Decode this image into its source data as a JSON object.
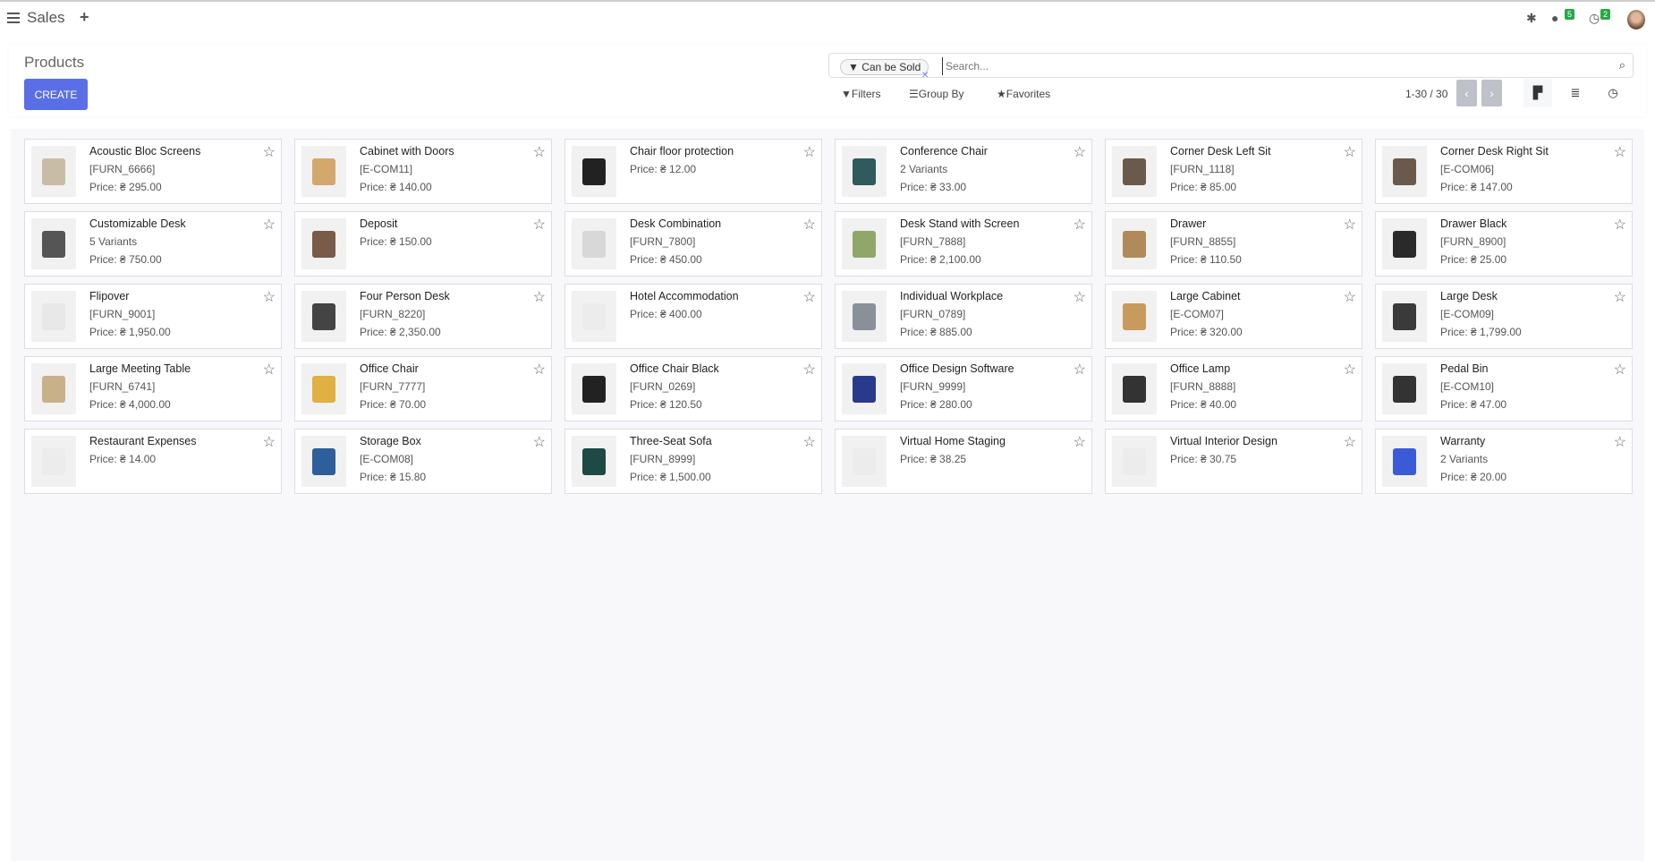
{
  "app": {
    "title": "Sales",
    "new_icon": "plus-icon"
  },
  "systray": {
    "messages_count": "5",
    "activities_count": "2"
  },
  "control_panel": {
    "title": "Products",
    "create_label": "CREATE",
    "search": {
      "facet": "Can be Sold",
      "placeholder": "Search..."
    },
    "filters_label": "Filters",
    "group_by_label": "Group By",
    "favorites_label": "Favorites",
    "pager": "1-30 / 30"
  },
  "products": [
    {
      "name": "Acoustic Bloc Screens",
      "line2": "[FURN_6666]",
      "price": "Price: ₴ 295.00",
      "color": "#c9bca6"
    },
    {
      "name": "Cabinet with Doors",
      "line2": "[E-COM11]",
      "price": "Price: ₴ 140.00",
      "color": "#d4a86c"
    },
    {
      "name": "Chair floor protection",
      "line2": "",
      "price": "Price: ₴ 12.00",
      "color": "#222222"
    },
    {
      "name": "Conference Chair",
      "line2": "2 Variants",
      "price": "Price: ₴ 33.00",
      "color": "#2f5b5c"
    },
    {
      "name": "Corner Desk Left Sit",
      "line2": "[FURN_1118]",
      "price": "Price: ₴ 85.00",
      "color": "#6b5a4c"
    },
    {
      "name": "Corner Desk Right Sit",
      "line2": "[E-COM06]",
      "price": "Price: ₴ 147.00",
      "color": "#6b5a4c"
    },
    {
      "name": "Customizable Desk",
      "line2": "5 Variants",
      "price": "Price: ₴ 750.00",
      "color": "#555555"
    },
    {
      "name": "Deposit",
      "line2": "",
      "price": "Price: ₴ 150.00",
      "color": "#7a5a48"
    },
    {
      "name": "Desk Combination",
      "line2": "[FURN_7800]",
      "price": "Price: ₴ 450.00",
      "color": "#d8d8d8"
    },
    {
      "name": "Desk Stand with Screen",
      "line2": "[FURN_7888]",
      "price": "Price: ₴ 2,100.00",
      "color": "#8fa86a"
    },
    {
      "name": "Drawer",
      "line2": "[FURN_8855]",
      "price": "Price: ₴ 110.50",
      "color": "#b08a5a"
    },
    {
      "name": "Drawer Black",
      "line2": "[FURN_8900]",
      "price": "Price: ₴ 25.00",
      "color": "#2a2a2a"
    },
    {
      "name": "Flipover",
      "line2": "[FURN_9001]",
      "price": "Price: ₴ 1,950.00",
      "color": "#e8e8e8"
    },
    {
      "name": "Four Person Desk",
      "line2": "[FURN_8220]",
      "price": "Price: ₴ 2,350.00",
      "color": "#444444"
    },
    {
      "name": "Hotel Accommodation",
      "line2": "",
      "price": "Price: ₴ 400.00",
      "color": "#ececec"
    },
    {
      "name": "Individual Workplace",
      "line2": "[FURN_0789]",
      "price": "Price: ₴ 885.00",
      "color": "#8a9099"
    },
    {
      "name": "Large Cabinet",
      "line2": "[E-COM07]",
      "price": "Price: ₴ 320.00",
      "color": "#c99a5e"
    },
    {
      "name": "Large Desk",
      "line2": "[E-COM09]",
      "price": "Price: ₴ 1,799.00",
      "color": "#3a3a3a"
    },
    {
      "name": "Large Meeting Table",
      "line2": "[FURN_6741]",
      "price": "Price: ₴ 4,000.00",
      "color": "#c8b08a"
    },
    {
      "name": "Office Chair",
      "line2": "[FURN_7777]",
      "price": "Price: ₴ 70.00",
      "color": "#e0b040"
    },
    {
      "name": "Office Chair Black",
      "line2": "[FURN_0269]",
      "price": "Price: ₴ 120.50",
      "color": "#222222"
    },
    {
      "name": "Office Design Software",
      "line2": "[FURN_9999]",
      "price": "Price: ₴ 280.00",
      "color": "#2a3a8a"
    },
    {
      "name": "Office Lamp",
      "line2": "[FURN_8888]",
      "price": "Price: ₴ 40.00",
      "color": "#333333"
    },
    {
      "name": "Pedal Bin",
      "line2": "[E-COM10]",
      "price": "Price: ₴ 47.00",
      "color": "#333333"
    },
    {
      "name": "Restaurant Expenses",
      "line2": "",
      "price": "Price: ₴ 14.00",
      "color": "#ececec"
    },
    {
      "name": "Storage Box",
      "line2": "[E-COM08]",
      "price": "Price: ₴ 15.80",
      "color": "#2d5f9a"
    },
    {
      "name": "Three-Seat Sofa",
      "line2": "[FURN_8999]",
      "price": "Price: ₴ 1,500.00",
      "color": "#1d4a44"
    },
    {
      "name": "Virtual Home Staging",
      "line2": "",
      "price": "Price: ₴ 38.25",
      "color": "#ececec"
    },
    {
      "name": "Virtual Interior Design",
      "line2": "",
      "price": "Price: ₴ 30.75",
      "color": "#ececec"
    },
    {
      "name": "Warranty",
      "line2": "2 Variants",
      "price": "Price: ₴ 20.00",
      "color": "#3b5bd6"
    }
  ]
}
